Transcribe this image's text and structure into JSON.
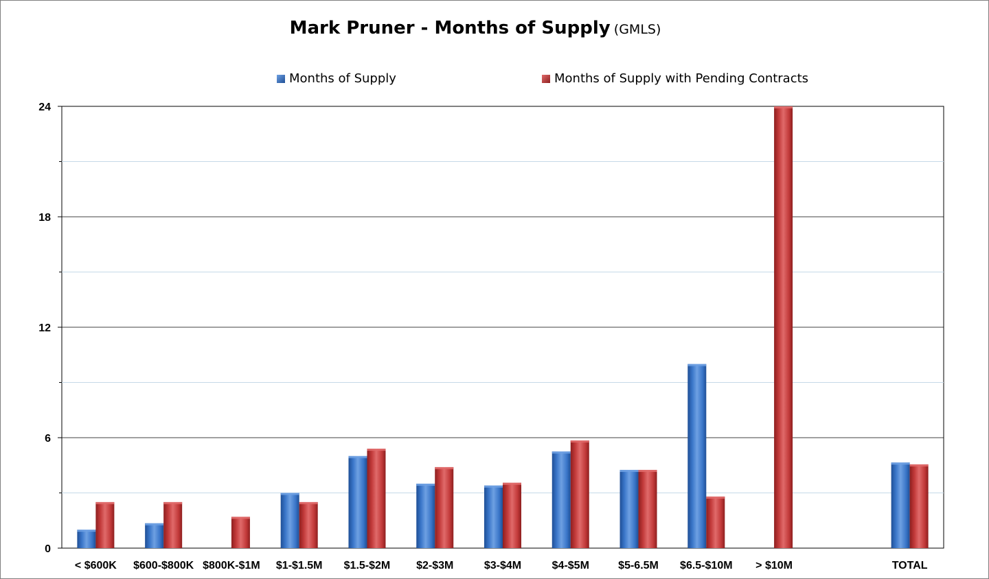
{
  "title": {
    "main": "Mark Pruner - Months of Supply",
    "sub": "(GMLS)"
  },
  "colors": {
    "series1": "#3a76c9",
    "series1_light": "#6ea0e2",
    "series1_dark": "#1f4f96",
    "series2": "#c23a3a",
    "series2_light": "#e06a6a",
    "series2_dark": "#8e1f1f"
  },
  "chart_data": {
    "type": "bar",
    "title": "Mark Pruner - Months of Supply",
    "subtitle": "(GMLS)",
    "categories": [
      "< $600K",
      "$600-$800K",
      "$800K-$1M",
      "$1-$1.5M",
      "$1.5-$2M",
      "$2-$3M",
      "$3-$4M",
      "$4-$5M",
      "$5-6.5M",
      "$6.5-$10M",
      "> $10M",
      "TOTAL"
    ],
    "series": [
      {
        "name": "Months of Supply",
        "values": [
          1.0,
          1.35,
          0,
          3.0,
          5.0,
          3.5,
          3.4,
          5.25,
          4.25,
          10.0,
          0,
          4.65
        ]
      },
      {
        "name": "Months of Supply with Pending Contracts",
        "values": [
          2.5,
          2.5,
          1.7,
          2.5,
          5.4,
          4.4,
          3.55,
          5.85,
          4.25,
          2.8,
          24,
          4.55
        ]
      }
    ],
    "category_gap_after": [
      10
    ],
    "ylim": [
      0,
      24
    ],
    "yticks": [
      0,
      6,
      12,
      18,
      24
    ],
    "minor_gridlines": [
      3,
      9,
      15,
      21
    ],
    "grid": true,
    "legend_position": "top",
    "xlabel": "",
    "ylabel": ""
  }
}
